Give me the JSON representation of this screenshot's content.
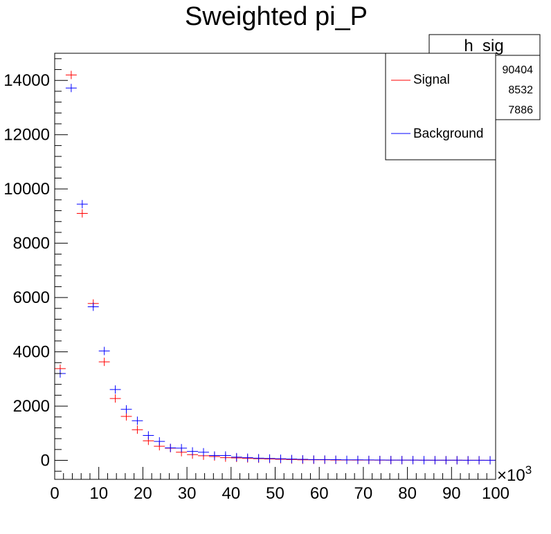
{
  "chart_data": {
    "type": "scatter",
    "title": "Sweighted pi_P",
    "xlabel": "",
    "ylabel": "",
    "x_multiplier": "×10",
    "x_multiplier_exp": "3",
    "xlim": [
      0,
      100
    ],
    "ylim": [
      -700,
      15000
    ],
    "x_ticks": [
      "0",
      "10",
      "20",
      "30",
      "40",
      "50",
      "60",
      "70",
      "80",
      "90",
      "100"
    ],
    "y_ticks": [
      "0",
      "2000",
      "4000",
      "6000",
      "8000",
      "10000",
      "12000",
      "14000"
    ],
    "bin_width": 2.5,
    "x": [
      1.25,
      3.75,
      6.25,
      8.75,
      11.25,
      13.75,
      16.25,
      18.75,
      21.25,
      23.75,
      26.25,
      28.75,
      31.25,
      33.75,
      36.25,
      38.75,
      41.25,
      43.75,
      46.25,
      48.75,
      51.25,
      53.75,
      56.25,
      58.75,
      61.25,
      63.75,
      66.25,
      68.75,
      71.25,
      73.75,
      76.25,
      78.75,
      81.25,
      83.75,
      86.25,
      88.75,
      91.25,
      93.75,
      96.25,
      98.75
    ],
    "series": [
      {
        "name": "Signal",
        "color": "#ff0000",
        "values": [
          3380,
          14200,
          9100,
          5780,
          3630,
          2280,
          1620,
          1130,
          720,
          520,
          450,
          300,
          210,
          170,
          140,
          100,
          90,
          70,
          60,
          50,
          40,
          30,
          20,
          20,
          20,
          15,
          12,
          10,
          10,
          8,
          8,
          6,
          6,
          5,
          5,
          4,
          4,
          3,
          3,
          2
        ]
      },
      {
        "name": "Background",
        "color": "#0000ff",
        "values": [
          3200,
          13720,
          9440,
          5660,
          4030,
          2610,
          1880,
          1460,
          920,
          700,
          460,
          450,
          330,
          300,
          180,
          180,
          120,
          100,
          80,
          70,
          60,
          50,
          40,
          30,
          30,
          25,
          20,
          20,
          18,
          15,
          12,
          10,
          10,
          8,
          8,
          6,
          6,
          5,
          5,
          4
        ]
      }
    ]
  },
  "legend": {
    "entries": [
      {
        "label": "Signal",
        "color": "#ff0000"
      },
      {
        "label": "Background",
        "color": "#0000ff"
      }
    ]
  },
  "stats": {
    "title": "h_sig",
    "values": [
      "90404",
      "8532",
      "7886"
    ]
  }
}
